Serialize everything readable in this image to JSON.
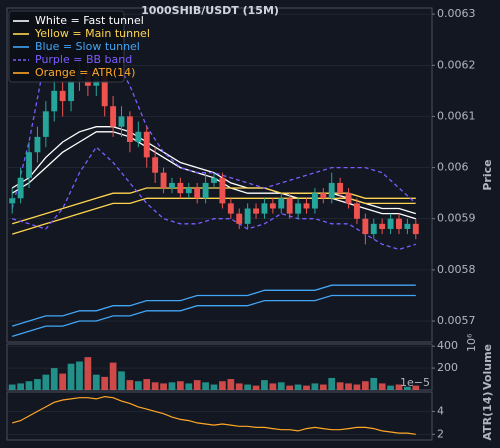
{
  "chart_data": [
    {
      "type": "candlestick",
      "title": "1000SHIB/USDT (15M)",
      "y_label": "Price",
      "ylim": [
        0.005659,
        0.006312
      ],
      "yticks": [
        0.0057,
        0.0058,
        0.0059,
        0.006,
        0.0061,
        0.0062,
        0.0063
      ],
      "grid": true,
      "up_color": "#26a69a",
      "down_color": "#ef5350",
      "open": [
        0.00593,
        0.00594,
        0.00598,
        0.00603,
        0.00606,
        0.00611,
        0.00615,
        0.00613,
        0.00617,
        0.00619,
        0.00616,
        0.00618,
        0.00612,
        0.00608,
        0.0061,
        0.00605,
        0.00607,
        0.00602,
        0.00599,
        0.00596,
        0.00597,
        0.00595,
        0.00596,
        0.00594,
        0.00597,
        0.00598,
        0.00593,
        0.00591,
        0.00589,
        0.00592,
        0.00591,
        0.00593,
        0.00592,
        0.00594,
        0.00591,
        0.00593,
        0.00592,
        0.00595,
        0.00594,
        0.00597,
        0.00595,
        0.00593,
        0.0059,
        0.00587,
        0.00589,
        0.00588,
        0.0059,
        0.00588,
        0.00589
      ],
      "high": [
        0.00596,
        0.006,
        0.00605,
        0.00608,
        0.00613,
        0.00618,
        0.00617,
        0.00619,
        0.00621,
        0.00621,
        0.0062,
        0.00619,
        0.00614,
        0.00612,
        0.00611,
        0.00609,
        0.00608,
        0.00604,
        0.006,
        0.00598,
        0.00598,
        0.00597,
        0.00597,
        0.00599,
        0.00599,
        0.00599,
        0.00594,
        0.00592,
        0.00593,
        0.00593,
        0.00594,
        0.00594,
        0.00595,
        0.00595,
        0.00594,
        0.00594,
        0.00596,
        0.00596,
        0.00599,
        0.00598,
        0.00596,
        0.00594,
        0.00591,
        0.0059,
        0.0059,
        0.00591,
        0.00591,
        0.0059,
        0.0059
      ],
      "low": [
        0.00591,
        0.00593,
        0.00596,
        0.00601,
        0.00604,
        0.00609,
        0.0061,
        0.00611,
        0.00615,
        0.00614,
        0.00614,
        0.0061,
        0.00606,
        0.00606,
        0.00603,
        0.00604,
        0.006,
        0.00597,
        0.00595,
        0.00595,
        0.00594,
        0.00594,
        0.00593,
        0.00593,
        0.00596,
        0.00592,
        0.0059,
        0.00588,
        0.00588,
        0.0059,
        0.0059,
        0.00591,
        0.00591,
        0.0059,
        0.0059,
        0.00591,
        0.00591,
        0.00593,
        0.00593,
        0.00594,
        0.00592,
        0.00589,
        0.00585,
        0.00586,
        0.00587,
        0.00587,
        0.00587,
        0.00587,
        0.00586
      ],
      "close": [
        0.00594,
        0.00598,
        0.00603,
        0.00606,
        0.00611,
        0.00615,
        0.00613,
        0.00617,
        0.00619,
        0.00616,
        0.00618,
        0.00612,
        0.00608,
        0.0061,
        0.00605,
        0.00607,
        0.00602,
        0.00599,
        0.00596,
        0.00597,
        0.00595,
        0.00596,
        0.00594,
        0.00597,
        0.00598,
        0.00593,
        0.00591,
        0.00589,
        0.00592,
        0.00591,
        0.00593,
        0.00592,
        0.00594,
        0.00591,
        0.00593,
        0.00592,
        0.00595,
        0.00594,
        0.00597,
        0.00595,
        0.00593,
        0.0059,
        0.00587,
        0.00589,
        0.00588,
        0.0059,
        0.00588,
        0.00589,
        0.00587
      ],
      "overlay_x": [
        0,
        2,
        4,
        6,
        8,
        10,
        12,
        14,
        16,
        18,
        20,
        22,
        24,
        26,
        28,
        30,
        32,
        34,
        36,
        38,
        40,
        42,
        44,
        46,
        48
      ],
      "overlays": [
        {
          "name": "White = Fast tunnel",
          "color": "#ffffff",
          "dashed": false,
          "upper": [
            0.00596,
            0.00598,
            0.00602,
            0.00605,
            0.00607,
            0.00608,
            0.00608,
            0.00607,
            0.00605,
            0.00603,
            0.00601,
            0.006,
            0.00599,
            0.00597,
            0.00596,
            0.00596,
            0.00595,
            0.00595,
            0.00595,
            0.00595,
            0.00594,
            0.00593,
            0.00592,
            0.00592,
            0.00591
          ],
          "lower": [
            0.00595,
            0.00597,
            0.006,
            0.00603,
            0.00605,
            0.00607,
            0.00607,
            0.00606,
            0.00604,
            0.00602,
            0.006,
            0.00599,
            0.00598,
            0.00596,
            0.00595,
            0.00595,
            0.00595,
            0.00594,
            0.00594,
            0.00594,
            0.00593,
            0.00592,
            0.00591,
            0.00591,
            0.0059
          ]
        },
        {
          "name": "Yellow = Main tunnel",
          "color": "#ffd54f",
          "dashed": false,
          "upper": [
            0.00589,
            0.0059,
            0.00591,
            0.00592,
            0.00593,
            0.00594,
            0.00595,
            0.00595,
            0.00596,
            0.00596,
            0.00596,
            0.00596,
            0.00596,
            0.00596,
            0.00596,
            0.00596,
            0.00595,
            0.00595,
            0.00595,
            0.00595,
            0.00595,
            0.00594,
            0.00594,
            0.00594,
            0.00594
          ],
          "lower": [
            0.00587,
            0.00588,
            0.00589,
            0.0059,
            0.00591,
            0.00592,
            0.00593,
            0.00593,
            0.00594,
            0.00594,
            0.00594,
            0.00594,
            0.00594,
            0.00594,
            0.00594,
            0.00594,
            0.00594,
            0.00594,
            0.00594,
            0.00594,
            0.00594,
            0.00593,
            0.00593,
            0.00593,
            0.00593
          ]
        },
        {
          "name": "Blue = Slow tunnel",
          "color": "#42a5f5",
          "dashed": false,
          "upper": [
            0.00569,
            0.0057,
            0.00571,
            0.00571,
            0.00572,
            0.00572,
            0.00573,
            0.00573,
            0.00574,
            0.00574,
            0.00574,
            0.00575,
            0.00575,
            0.00575,
            0.00575,
            0.00576,
            0.00576,
            0.00576,
            0.00576,
            0.00577,
            0.00577,
            0.00577,
            0.00577,
            0.00577,
            0.00577
          ],
          "lower": [
            0.00567,
            0.00568,
            0.00569,
            0.00569,
            0.0057,
            0.0057,
            0.00571,
            0.00571,
            0.00572,
            0.00572,
            0.00572,
            0.00573,
            0.00573,
            0.00573,
            0.00573,
            0.00574,
            0.00574,
            0.00574,
            0.00574,
            0.00575,
            0.00575,
            0.00575,
            0.00575,
            0.00575,
            0.00575
          ]
        },
        {
          "name": "Purple = BB band",
          "color": "#7c5cff",
          "dashed": true,
          "upper": [
            0.00592,
            0.00605,
            0.00622,
            0.00628,
            0.00626,
            0.00624,
            0.00622,
            0.00616,
            0.00608,
            0.00603,
            0.006,
            0.00599,
            0.00599,
            0.00598,
            0.00597,
            0.00596,
            0.00597,
            0.00598,
            0.00599,
            0.006,
            0.006,
            0.006,
            0.00599,
            0.00596,
            0.00593
          ],
          "lower": [
            0.0059,
            0.00589,
            0.00588,
            0.00592,
            0.00599,
            0.00604,
            0.00601,
            0.00597,
            0.00593,
            0.0059,
            0.00589,
            0.00589,
            0.0059,
            0.0059,
            0.00588,
            0.00589,
            0.00591,
            0.0059,
            0.0059,
            0.00589,
            0.00589,
            0.00587,
            0.00585,
            0.00584,
            0.00585
          ]
        }
      ]
    },
    {
      "type": "bar",
      "y_label": "Volume",
      "offset_label": "10⁶",
      "ylim": [
        0,
        420
      ],
      "yticks": [
        200,
        400
      ],
      "grid": true,
      "values": [
        50,
        60,
        80,
        100,
        140,
        200,
        150,
        240,
        260,
        300,
        140,
        120,
        250,
        170,
        90,
        80,
        100,
        70,
        60,
        70,
        80,
        60,
        90,
        70,
        50,
        80,
        100,
        60,
        50,
        40,
        90,
        60,
        70,
        40,
        50,
        40,
        60,
        50,
        110,
        70,
        60,
        50,
        80,
        110,
        60,
        40,
        50,
        30,
        40
      ]
    },
    {
      "type": "line",
      "y_label": "ATR(14)",
      "offset_label": "1e−5",
      "ylim": [
        1.5,
        5.7
      ],
      "yticks": [
        2,
        4
      ],
      "grid": true,
      "series": [
        {
          "name": "Orange = ATR(14)",
          "color": "#ffa726",
          "values": [
            3.0,
            3.2,
            3.6,
            4.0,
            4.4,
            4.8,
            5.0,
            5.1,
            5.2,
            5.2,
            5.1,
            5.3,
            5.2,
            4.9,
            4.7,
            4.4,
            4.2,
            4.0,
            3.8,
            3.5,
            3.3,
            3.2,
            3.0,
            2.9,
            2.8,
            2.9,
            2.8,
            2.7,
            2.7,
            2.6,
            2.6,
            2.5,
            2.4,
            2.4,
            2.3,
            2.5,
            2.6,
            2.5,
            2.4,
            2.4,
            2.5,
            2.6,
            2.6,
            2.5,
            2.3,
            2.2,
            2.1,
            2.1,
            2.0
          ]
        }
      ]
    }
  ]
}
